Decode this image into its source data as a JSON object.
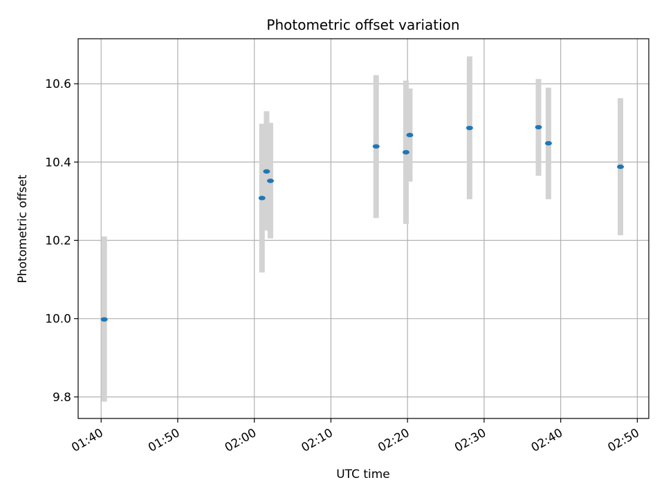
{
  "chart_data": {
    "type": "scatter",
    "title": "Photometric offset variation",
    "xlabel": "UTC time",
    "ylabel": "Photometric offset",
    "xlim": [
      "01:37:00",
      "02:51:30"
    ],
    "ylim": [
      9.745,
      10.715
    ],
    "grid": true,
    "x_ticks": [
      "01:40",
      "01:50",
      "02:00",
      "02:10",
      "02:20",
      "02:30",
      "02:40",
      "02:50"
    ],
    "y_ticks": [
      "9.8",
      "10.0",
      "10.2",
      "10.4",
      "10.6"
    ],
    "series": [
      {
        "points": [
          {
            "x": "01:40:24",
            "y": 9.998,
            "lo": 9.788,
            "hi": 10.21
          },
          {
            "x": "02:01:00",
            "y": 10.308,
            "lo": 10.118,
            "hi": 10.498
          },
          {
            "x": "02:01:36",
            "y": 10.376,
            "lo": 10.225,
            "hi": 10.53
          },
          {
            "x": "02:02:06",
            "y": 10.352,
            "lo": 10.205,
            "hi": 10.5
          },
          {
            "x": "02:15:54",
            "y": 10.44,
            "lo": 10.257,
            "hi": 10.622
          },
          {
            "x": "02:19:48",
            "y": 10.425,
            "lo": 10.242,
            "hi": 10.608
          },
          {
            "x": "02:20:18",
            "y": 10.469,
            "lo": 10.35,
            "hi": 10.588
          },
          {
            "x": "02:28:06",
            "y": 10.487,
            "lo": 10.305,
            "hi": 10.67
          },
          {
            "x": "02:37:06",
            "y": 10.489,
            "lo": 10.365,
            "hi": 10.612
          },
          {
            "x": "02:38:24",
            "y": 10.448,
            "lo": 10.305,
            "hi": 10.59
          },
          {
            "x": "02:47:48",
            "y": 10.388,
            "lo": 10.213,
            "hi": 10.563
          }
        ]
      }
    ],
    "colors": {
      "marker": "#1f77b4",
      "errorbar": "#d3d3d3",
      "grid": "#b0b0b0"
    }
  }
}
